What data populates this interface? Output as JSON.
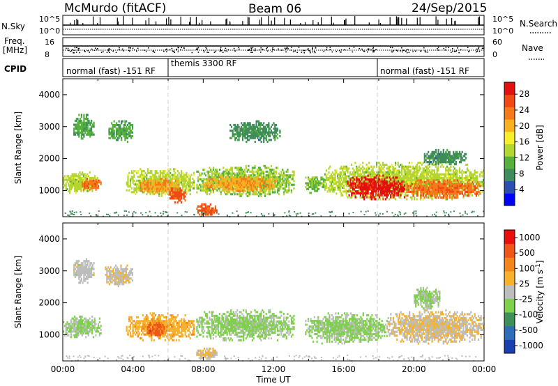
{
  "header": {
    "station": "McMurdo (fitACF)",
    "beam": "Beam 06",
    "date": "24/Sep/2015"
  },
  "panels": {
    "nsky": {
      "left_label": "N.Sky",
      "right_label": "N.Search",
      "left_ticks": [
        "10^5",
        "10^0"
      ],
      "right_ticks": [
        "10^5",
        "10^0"
      ]
    },
    "freq": {
      "left_label_top": "Freq.",
      "left_label_unit": "[MHz]",
      "right_label": "Nave",
      "left_ticks": [
        "16",
        "8"
      ],
      "right_ticks": [
        "60",
        "0"
      ]
    },
    "cpid": {
      "label": "CPID",
      "segments": [
        "normal (fast) -151 RF",
        "themis 3300 RF",
        "normal (fast) -151 RF"
      ]
    }
  },
  "colors": {
    "power_scale": [
      "#0000ff",
      "#2b4fb0",
      "#3f8d5a",
      "#55b03c",
      "#b5d530",
      "#f7ef2a",
      "#f9b21f",
      "#f47a1a",
      "#f04a14",
      "#e31010"
    ],
    "velocity_scale": [
      "#e80f0f",
      "#f0561a",
      "#f2861d",
      "#f6b22b",
      "#bdbdbd",
      "#7fd04c",
      "#3e8f58",
      "#2f6db8",
      "#1c3fb0"
    ]
  },
  "chart_data": [
    {
      "type": "heatmap",
      "name": "power",
      "ylabel": "Slant Range [km]",
      "xlabel": "",
      "x_ticks": [],
      "y_ticks": [
        "1000",
        "2000",
        "3000",
        "4000"
      ],
      "xlim": [
        0,
        24
      ],
      "ylim": [
        180,
        4500
      ],
      "colorbar": {
        "label": "Power [dB]",
        "ticks": [
          "4",
          "8",
          "12",
          "16",
          "20",
          "24",
          "28"
        ],
        "range": [
          0,
          31
        ]
      },
      "blobs": [
        {
          "t0": 0.0,
          "t1": 2.0,
          "r0": 900,
          "r1": 1600,
          "value": 14
        },
        {
          "t0": 0.6,
          "t1": 1.8,
          "r0": 2600,
          "r1": 3400,
          "value": 10
        },
        {
          "t0": 1.0,
          "t1": 2.2,
          "r0": 1000,
          "r1": 1400,
          "value": 24
        },
        {
          "t0": 2.6,
          "t1": 4.0,
          "r0": 2500,
          "r1": 3200,
          "value": 10
        },
        {
          "t0": 3.6,
          "t1": 7.5,
          "r0": 800,
          "r1": 1700,
          "value": 14
        },
        {
          "t0": 4.4,
          "t1": 6.6,
          "r0": 900,
          "r1": 1400,
          "value": 22
        },
        {
          "t0": 6.0,
          "t1": 7.0,
          "r0": 600,
          "r1": 1100,
          "value": 26
        },
        {
          "t0": 7.6,
          "t1": 13.2,
          "r0": 800,
          "r1": 1800,
          "value": 13
        },
        {
          "t0": 8.0,
          "t1": 12.2,
          "r0": 950,
          "r1": 1450,
          "value": 21
        },
        {
          "t0": 7.6,
          "t1": 8.8,
          "r0": 220,
          "r1": 600,
          "value": 26
        },
        {
          "t0": 9.5,
          "t1": 12.4,
          "r0": 2500,
          "r1": 3200,
          "value": 8
        },
        {
          "t0": 13.8,
          "t1": 14.9,
          "r0": 900,
          "r1": 1500,
          "value": 12
        },
        {
          "t0": 14.9,
          "t1": 24.0,
          "r0": 700,
          "r1": 1900,
          "value": 14
        },
        {
          "t0": 16.2,
          "t1": 19.5,
          "r0": 700,
          "r1": 1500,
          "value": 29
        },
        {
          "t0": 19.5,
          "t1": 23.8,
          "r0": 750,
          "r1": 1350,
          "value": 24
        },
        {
          "t0": 20.5,
          "t1": 23.0,
          "r0": 1800,
          "r1": 2300,
          "value": 8
        }
      ]
    },
    {
      "type": "heatmap",
      "name": "velocity",
      "ylabel": "Slant Range [km]",
      "xlabel": "Time UT",
      "x_ticks": [
        "00:00",
        "04:00",
        "08:00",
        "12:00",
        "16:00",
        "20:00",
        "00:00"
      ],
      "y_ticks": [
        "1000",
        "2000",
        "3000",
        "4000"
      ],
      "xlim": [
        0,
        24
      ],
      "ylim": [
        180,
        4500
      ],
      "colorbar": {
        "label": "Velocity [m s^-1]",
        "ticks": [
          "1000",
          "500",
          "100",
          "25",
          "-25",
          "-100",
          "-500",
          "-1000"
        ],
        "range": [
          -1200,
          1200
        ]
      },
      "blobs": [
        {
          "t0": 0.0,
          "t1": 2.2,
          "r0": 900,
          "r1": 1600,
          "value": -150
        },
        {
          "t0": 0.6,
          "t1": 1.8,
          "r0": 2600,
          "r1": 3400,
          "value": 0
        },
        {
          "t0": 2.4,
          "t1": 4.0,
          "r0": 2500,
          "r1": 3200,
          "value": 80
        },
        {
          "t0": 3.6,
          "t1": 7.5,
          "r0": 800,
          "r1": 1700,
          "value": 300
        },
        {
          "t0": 4.8,
          "t1": 5.8,
          "r0": 900,
          "r1": 1400,
          "value": 800
        },
        {
          "t0": 7.6,
          "t1": 13.2,
          "r0": 800,
          "r1": 1800,
          "value": -200
        },
        {
          "t0": 7.6,
          "t1": 8.8,
          "r0": 220,
          "r1": 600,
          "value": 150
        },
        {
          "t0": 13.8,
          "t1": 18.5,
          "r0": 700,
          "r1": 1700,
          "value": -180
        },
        {
          "t0": 18.5,
          "t1": 24.0,
          "r0": 700,
          "r1": 1800,
          "value": 120
        },
        {
          "t0": 20.0,
          "t1": 21.5,
          "r0": 1800,
          "r1": 2500,
          "value": -150
        }
      ]
    }
  ]
}
